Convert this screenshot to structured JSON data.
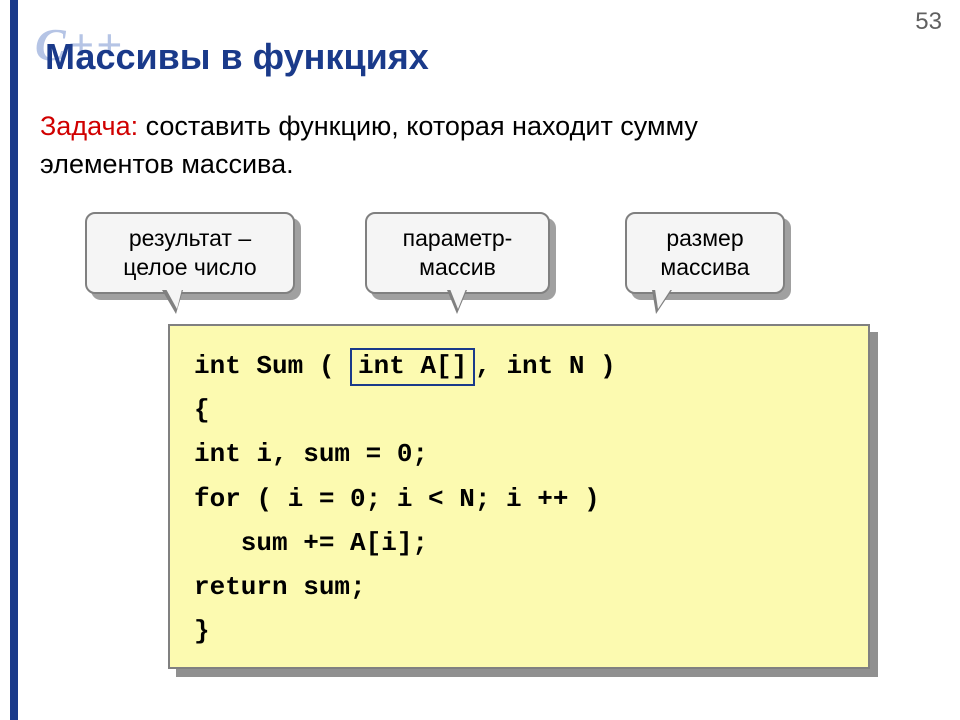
{
  "page_number": "53",
  "watermark": "C++",
  "title": "Массивы в функциях",
  "task": {
    "label": "Задача:",
    "text_line1": " составить функцию, которая находит сумму",
    "text_line2": "элементов массива."
  },
  "callouts": {
    "c1": {
      "line1": "результат –",
      "line2": "целое число"
    },
    "c2": {
      "line1": "параметр-",
      "line2": "массив"
    },
    "c3": {
      "line1": "размер",
      "line2": "массива"
    }
  },
  "code": {
    "l1a": "int Sum ( ",
    "l1_hl": "int A[]",
    "l1b": ", int N )",
    "l2": "{",
    "l3": "int i, sum = 0;",
    "l4": "for ( i = 0; i < N; i ++ )",
    "l5": "   sum += A[i];",
    "l6": "return sum;",
    "l7": "}"
  },
  "style": {
    "accent_color": "#1a3a8a",
    "task_label_color": "#d00000",
    "code_bg": "#fcfab0",
    "callout_bg": "#f5f5f5",
    "title_fontsize": 36,
    "body_fontsize": 27,
    "callout_fontsize": 23,
    "code_fontsize": 26,
    "code_font": "Courier New",
    "body_font": "Arial"
  }
}
